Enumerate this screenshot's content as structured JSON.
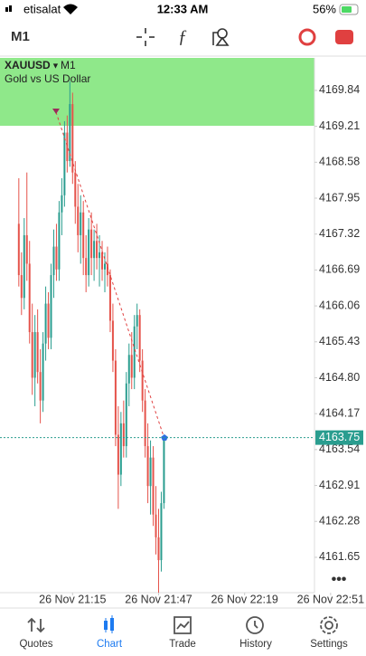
{
  "status_bar": {
    "carrier": "etisalat",
    "time": "12:33 AM",
    "battery": "56%"
  },
  "toolbar": {
    "timeframe": "M1"
  },
  "chart_data": {
    "type": "candlestick",
    "symbol": "XAUUSD",
    "timeframe": "M1",
    "description": "Gold vs US Dollar",
    "x": [
      1255,
      1256,
      1257,
      1258,
      1259,
      1260,
      1261,
      1262,
      1263,
      1264,
      1265,
      1266,
      1267,
      1268,
      1269,
      1270,
      1271,
      1272,
      1273,
      1274,
      1275,
      1276,
      1277,
      1278,
      1279,
      1280,
      1281,
      1282,
      1283,
      1284,
      1285,
      1286,
      1287,
      1288,
      1289,
      1290,
      1291,
      1292,
      1293,
      1294,
      1295,
      1296,
      1297,
      1298,
      1299,
      1300,
      1301,
      1302,
      1303,
      1304,
      1305,
      1306,
      1307,
      1308,
      1309
    ],
    "open": [
      4167.5,
      4166.6,
      4166.2,
      4167.3,
      4166.8,
      4165.6,
      4164.8,
      4165.6,
      4164.9,
      4164.4,
      4165.4,
      4166.1,
      4165.5,
      4166.6,
      4167.1,
      4166.7,
      4167.7,
      4168.0,
      4169.1,
      4168.6,
      4169.6,
      4168.4,
      4167.8,
      4167.3,
      4167.7,
      4166.9,
      4166.6,
      4167.4,
      4166.9,
      4167.2,
      4166.9,
      4167.0,
      4166.7,
      4166.8,
      4166.6,
      4165.8,
      4165.1,
      4163.8,
      4163.1,
      4164.0,
      4163.6,
      4164.7,
      4165.2,
      4164.8,
      4165.7,
      4165.9,
      4165.1,
      4164.4,
      4163.6,
      4162.9,
      4163.4,
      4162.4,
      4162.0,
      4161.6,
      4162.6
    ],
    "high": [
      4168.3,
      4167.0,
      4167.6,
      4168.4,
      4167.2,
      4166.1,
      4165.9,
      4166.0,
      4165.3,
      4165.6,
      4166.4,
      4166.3,
      4166.8,
      4167.4,
      4167.5,
      4167.9,
      4168.3,
      4169.3,
      4169.4,
      4170.0,
      4169.8,
      4168.6,
      4168.2,
      4168.0,
      4167.9,
      4167.3,
      4167.6,
      4167.7,
      4167.4,
      4167.5,
      4167.3,
      4167.2,
      4167.0,
      4167.1,
      4166.7,
      4166.1,
      4165.3,
      4164.3,
      4164.2,
      4164.4,
      4164.9,
      4165.4,
      4165.6,
      4165.9,
      4166.1,
      4166.0,
      4165.3,
      4164.6,
      4164.0,
      4163.7,
      4163.6,
      4162.9,
      4162.5,
      4162.8,
      4163.8
    ],
    "low": [
      4166.4,
      4165.9,
      4166.0,
      4166.5,
      4165.4,
      4164.5,
      4164.3,
      4164.7,
      4164.0,
      4164.2,
      4165.1,
      4165.3,
      4165.3,
      4166.2,
      4166.5,
      4166.5,
      4167.3,
      4167.8,
      4168.4,
      4168.5,
      4168.2,
      4167.5,
      4167.0,
      4166.8,
      4166.6,
      4166.3,
      4166.4,
      4166.6,
      4166.5,
      4166.7,
      4166.4,
      4166.5,
      4166.3,
      4166.4,
      4165.6,
      4164.9,
      4163.6,
      4162.5,
      4162.9,
      4163.4,
      4163.4,
      4164.3,
      4164.6,
      4164.6,
      4165.3,
      4164.9,
      4164.2,
      4163.4,
      4162.6,
      4162.4,
      4162.2,
      4161.7,
      4161.0,
      4161.4,
      4162.5
    ],
    "close": [
      4166.6,
      4166.2,
      4167.3,
      4166.8,
      4165.6,
      4164.8,
      4165.6,
      4164.9,
      4164.4,
      4165.4,
      4166.1,
      4165.5,
      4166.6,
      4167.1,
      4166.7,
      4167.7,
      4168.0,
      4169.1,
      4168.6,
      4169.6,
      4168.4,
      4167.8,
      4167.3,
      4167.7,
      4166.9,
      4166.6,
      4167.4,
      4166.9,
      4167.2,
      4166.9,
      4167.0,
      4166.7,
      4166.8,
      4166.6,
      4165.8,
      4165.1,
      4163.8,
      4163.1,
      4164.0,
      4163.6,
      4164.7,
      4165.2,
      4164.8,
      4165.7,
      4165.9,
      4165.1,
      4164.4,
      4163.6,
      4162.9,
      4163.4,
      4162.4,
      4162.0,
      4161.6,
      4162.6,
      4163.75
    ],
    "up_color": "#2a9d8f",
    "down_color": "#e5534b",
    "ylim": [
      4161.03,
      4170.41
    ],
    "yticks": [
      4169.84,
      4169.21,
      4168.58,
      4167.95,
      4167.32,
      4166.69,
      4166.06,
      4165.43,
      {
        "value": 4164.8,
        "label": "4164.80"
      },
      4164.17,
      4163.54,
      4162.91,
      4162.28,
      4161.65
    ],
    "xlim": [
      1248,
      1365
    ],
    "xticks": [
      {
        "value": 1275,
        "label": "26 Nov 21:15"
      },
      {
        "value": 1307,
        "label": "26 Nov 21:47"
      },
      {
        "value": 1339,
        "label": "26 Nov 22:19"
      },
      {
        "value": 1371,
        "label": "26 Nov 22:51"
      }
    ],
    "last_price": 4163.75
  },
  "tabs": [
    "Quotes",
    "Chart",
    "Trade",
    "History",
    "Settings"
  ]
}
